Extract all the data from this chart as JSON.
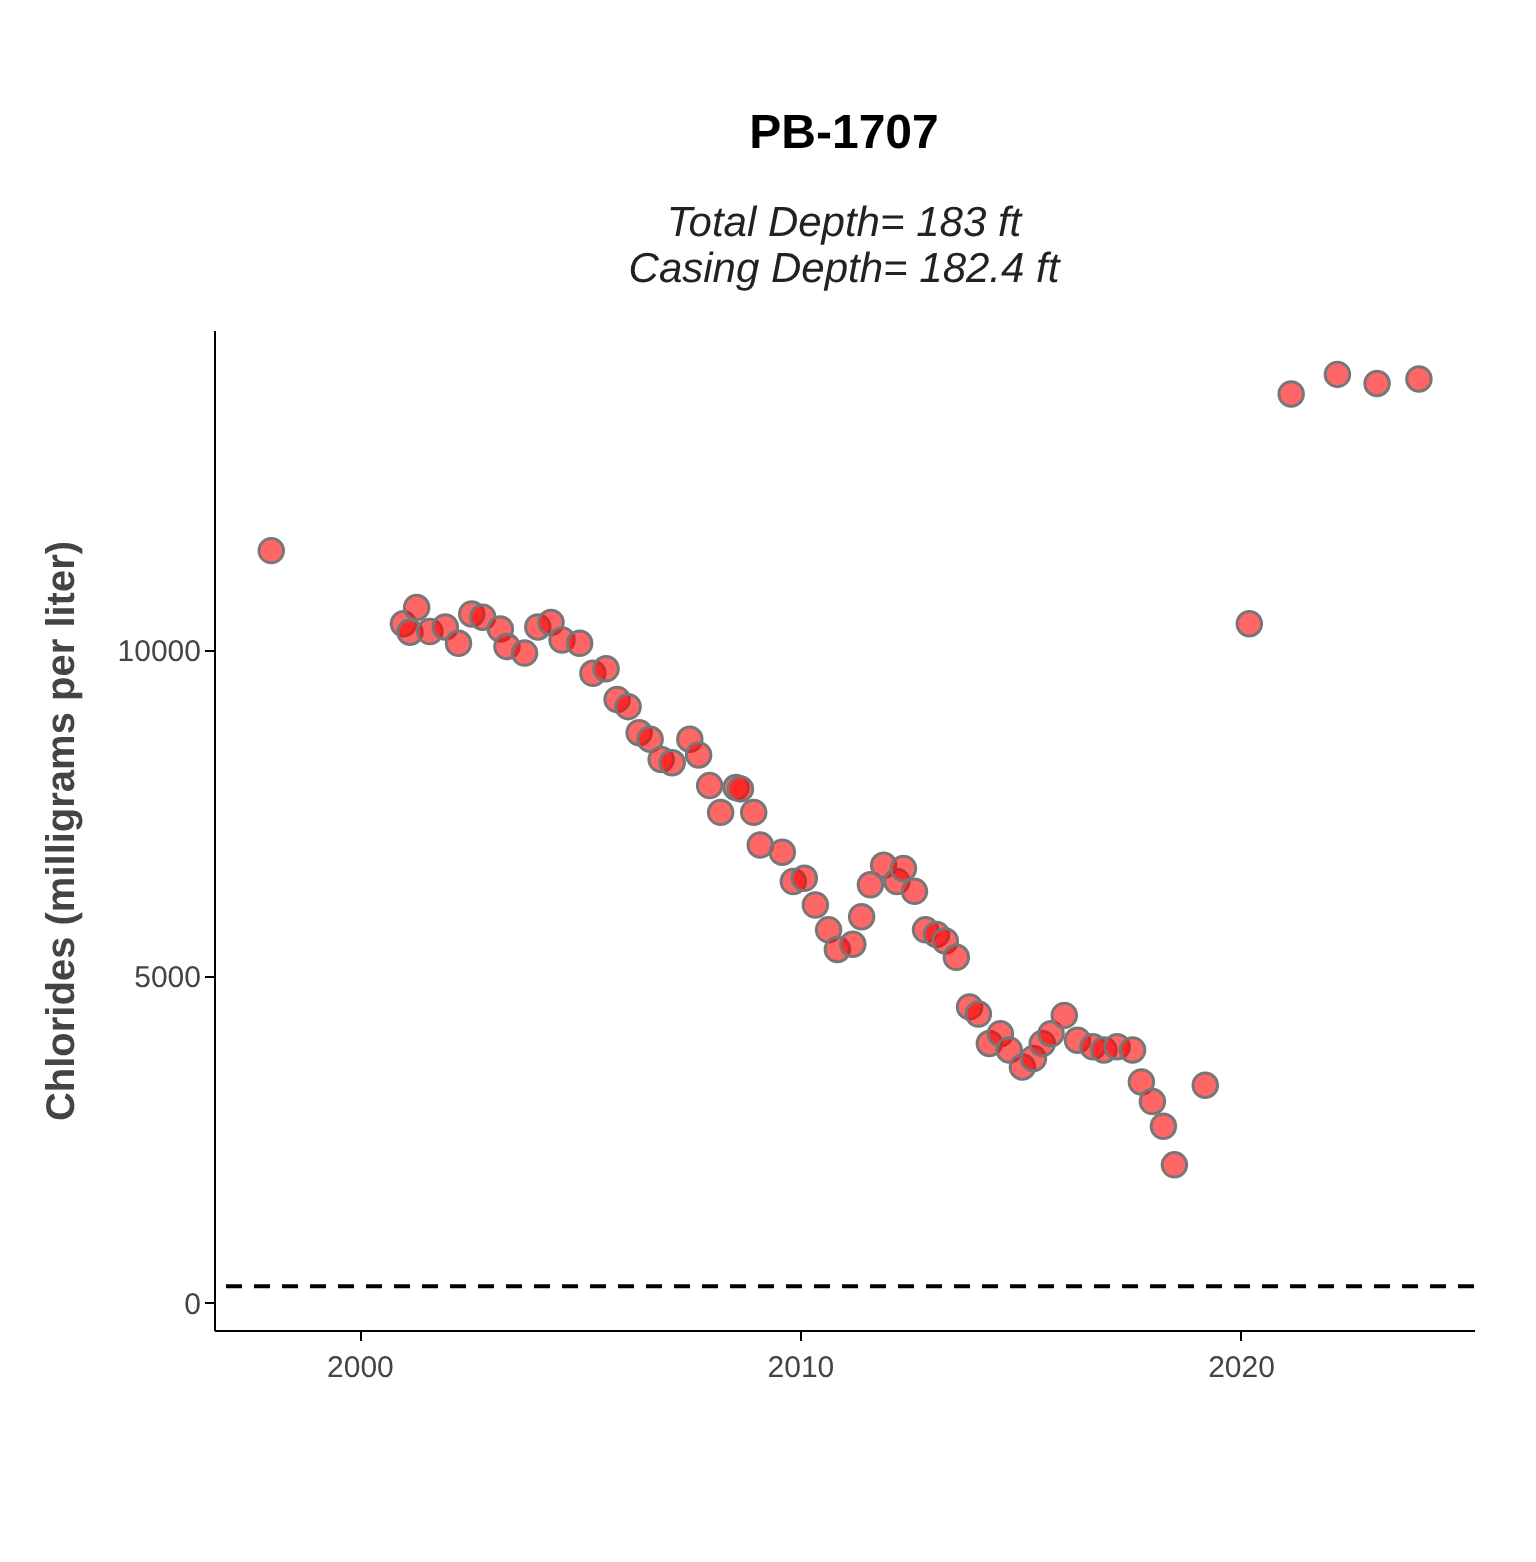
{
  "chart_data": {
    "type": "scatter",
    "title": "PB-1707",
    "subtitle": "Total Depth= 183 ft\nCasing Depth= 182.4 ft",
    "ylabel": "Chlorides (milligrams per liter)",
    "x": [
      1998.0,
      2001.0,
      2001.15,
      2001.3,
      2001.6,
      2001.95,
      2002.25,
      2002.55,
      2002.8,
      2003.2,
      2003.35,
      2003.75,
      2004.05,
      2004.35,
      2004.6,
      2005.0,
      2005.3,
      2005.6,
      2005.85,
      2006.1,
      2006.35,
      2006.6,
      2006.85,
      2007.1,
      2007.5,
      2007.7,
      2007.95,
      2008.2,
      2008.55,
      2008.65,
      2008.95,
      2009.1,
      2009.6,
      2009.85,
      2010.1,
      2010.35,
      2010.65,
      2010.85,
      2011.2,
      2011.4,
      2011.6,
      2011.9,
      2012.2,
      2012.35,
      2012.6,
      2012.85,
      2013.1,
      2013.3,
      2013.55,
      2013.85,
      2014.05,
      2014.3,
      2014.55,
      2014.75,
      2015.05,
      2015.3,
      2015.5,
      2015.7,
      2016.0,
      2016.3,
      2016.65,
      2016.9,
      2017.2,
      2017.55,
      2017.75,
      2018.0,
      2018.25,
      2018.5,
      2019.2,
      2020.2,
      2021.15,
      2022.2,
      2023.1,
      2024.05
    ],
    "series": [
      {
        "color": "#ff0000",
        "values": [
          11520,
          10400,
          10270,
          10650,
          10280,
          10350,
          10100,
          10550,
          10500,
          10320,
          10050,
          9950,
          10350,
          10420,
          10150,
          10100,
          9640,
          9710,
          9240,
          9130,
          8730,
          8630,
          8320,
          8270,
          8630,
          8390,
          7920,
          7510,
          7890,
          7870,
          7510,
          7010,
          6900,
          6450,
          6500,
          6090,
          5710,
          5410,
          5490,
          5910,
          6400,
          6700,
          6450,
          6650,
          6300,
          5710,
          5640,
          5540,
          5290,
          4530,
          4420,
          3970,
          4120,
          3870,
          3610,
          3740,
          3970,
          4120,
          4400,
          4020,
          3920,
          3870,
          3920,
          3870,
          3380,
          3080,
          2700,
          2110,
          3330,
          10400,
          13920,
          14220,
          14080,
          14150
        ]
      }
    ],
    "xlim": [
      1996.7,
      2025.3
    ],
    "xticks": [
      2000,
      2010,
      2020
    ],
    "ylim": [
      -420,
      14900
    ],
    "yticks": [
      0,
      5000,
      10000
    ],
    "ref_lines": [
      {
        "axis": "y",
        "value": 250,
        "line_style": "dashed",
        "color": "#000000"
      }
    ],
    "grid": false
  }
}
